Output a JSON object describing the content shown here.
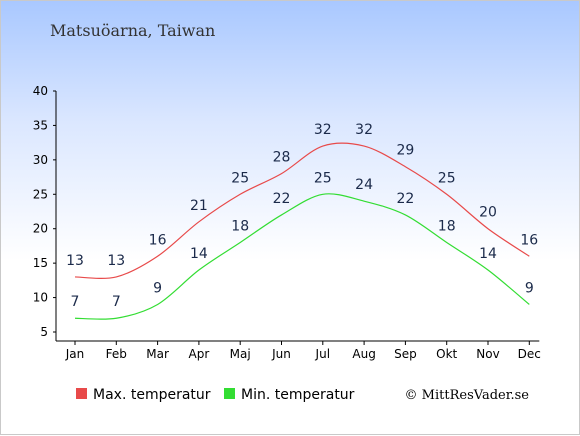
{
  "title": "Matsuöarna, Taiwan",
  "credit": "© MittResVader.se",
  "chart_data": {
    "type": "line",
    "categories": [
      "Jan",
      "Feb",
      "Mar",
      "Apr",
      "Maj",
      "Jun",
      "Jul",
      "Aug",
      "Sep",
      "Okt",
      "Nov",
      "Dec"
    ],
    "ylim": [
      5,
      40
    ],
    "yticks": [
      5,
      10,
      15,
      20,
      25,
      30,
      35,
      40
    ],
    "grid": false,
    "legend": "bottom",
    "series": [
      {
        "name": "Max. temperatur",
        "color": "#e84a4a",
        "values": [
          13,
          13,
          16,
          21,
          25,
          28,
          32,
          32,
          29,
          25,
          20,
          16
        ]
      },
      {
        "name": "Min. temperatur",
        "color": "#33dd33",
        "values": [
          7,
          7,
          9,
          14,
          18,
          22,
          25,
          24,
          22,
          18,
          14,
          9
        ]
      }
    ]
  }
}
